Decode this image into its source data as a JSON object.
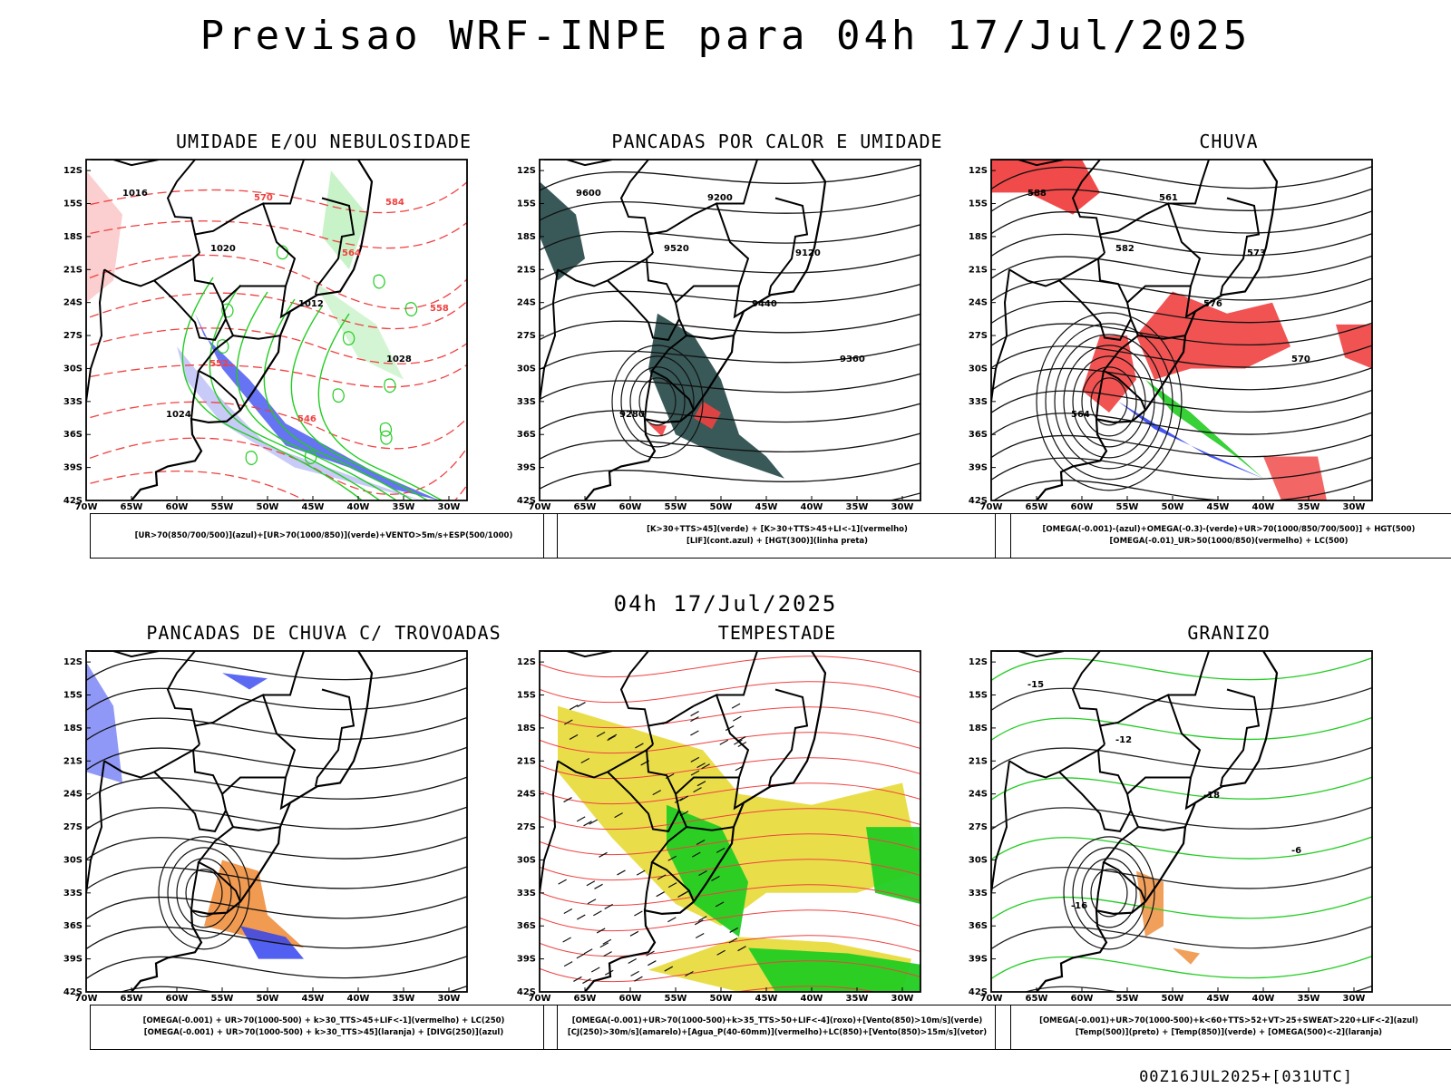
{
  "title": "Previsao WRF-INPE  para 04h 17/Jul/2025",
  "mid_title": "04h 17/Jul/2025",
  "footer": "00Z16JUL2025+[031UTC]",
  "axes": {
    "lat_labels": [
      "12S",
      "15S",
      "18S",
      "21S",
      "24S",
      "27S",
      "30S",
      "33S",
      "36S",
      "39S",
      "42S"
    ],
    "lon_labels": [
      "70W",
      "65W",
      "60W",
      "55W",
      "50W",
      "45W",
      "40W",
      "35W",
      "30W"
    ]
  },
  "colors": {
    "blue": "#3344ee",
    "green": "#22cc22",
    "red": "#f04040",
    "dark_teal": "#2e5050",
    "orange": "#ee8833",
    "yellow": "#e8dc40",
    "lavender": "#9aa0f0"
  },
  "panels": [
    {
      "title": "UMIDADE E/OU NEBULOSIDADE",
      "legend": [
        "[UR>70(850/700/500)](azul)+[UR>70(1000/850)](verde)+VENTO>5m/s+ESP(500/1000)"
      ],
      "contour_labels": [
        "1016",
        "1020",
        "1012",
        "1028",
        "1024",
        "570",
        "564",
        "558",
        "552",
        "546",
        "584"
      ]
    },
    {
      "title": "PANCADAS POR CALOR E UMIDADE",
      "legend": [
        "[K>30+TTS>45](verde) + [K>30+TTS>45+LI<-1](vermelho)",
        "[LIF](cont.azul) + [HGT(300)](linha preta)"
      ],
      "contour_labels": [
        "9600",
        "9520",
        "9440",
        "9360",
        "9280",
        "9200",
        "9120"
      ]
    },
    {
      "title": "CHUVA",
      "legend": [
        "[OMEGA(-0.001)-(azul)+OMEGA(-0.3)-(verde)+UR>70(1000/850/700/500)] + HGT(500)",
        "[OMEGA(-0.01)_UR>50(1000/850)(vermelho) + LC(500)"
      ],
      "contour_labels": [
        "588",
        "582",
        "576",
        "570",
        "564",
        "561",
        "573"
      ]
    },
    {
      "title": "PANCADAS DE CHUVA C/ TROVOADAS",
      "legend": [
        "[OMEGA(-0.001) + UR>70(1000-500) + k>30_TTS>45+LIF<-1](vermelho) + LC(250)",
        "[OMEGA(-0.001) + UR>70(1000-500) + k>30_TTS>45](laranja) + [DIVG(250)](azul)"
      ],
      "contour_labels": []
    },
    {
      "title": "TEMPESTADE",
      "legend": [
        "[OMEGA(-0.001)+UR>70(1000-500)+k>35_TTS>50+LIF<-4](roxo)+[Vento(850)>10m/s](verde)",
        "[CJ(250)>30m/s](amarelo)+[Agua_P(40-60mm)](vermelho)+LC(850)+[Vento(850)>15m/s](vetor)"
      ],
      "contour_labels": []
    },
    {
      "title": "GRANIZO",
      "legend": [
        "[OMEGA(-0.001)+UR>70(1000-500)+k<60+TTS>52+VT>25+SWEAT>220+LIF<-2](azul)",
        "[Temp(500)](preto) + [Temp(850)](verde) + [OMEGA(500)<-2](laranja)"
      ],
      "contour_labels": [
        "-15",
        "-12",
        "-18",
        "-6",
        "-16"
      ]
    }
  ]
}
